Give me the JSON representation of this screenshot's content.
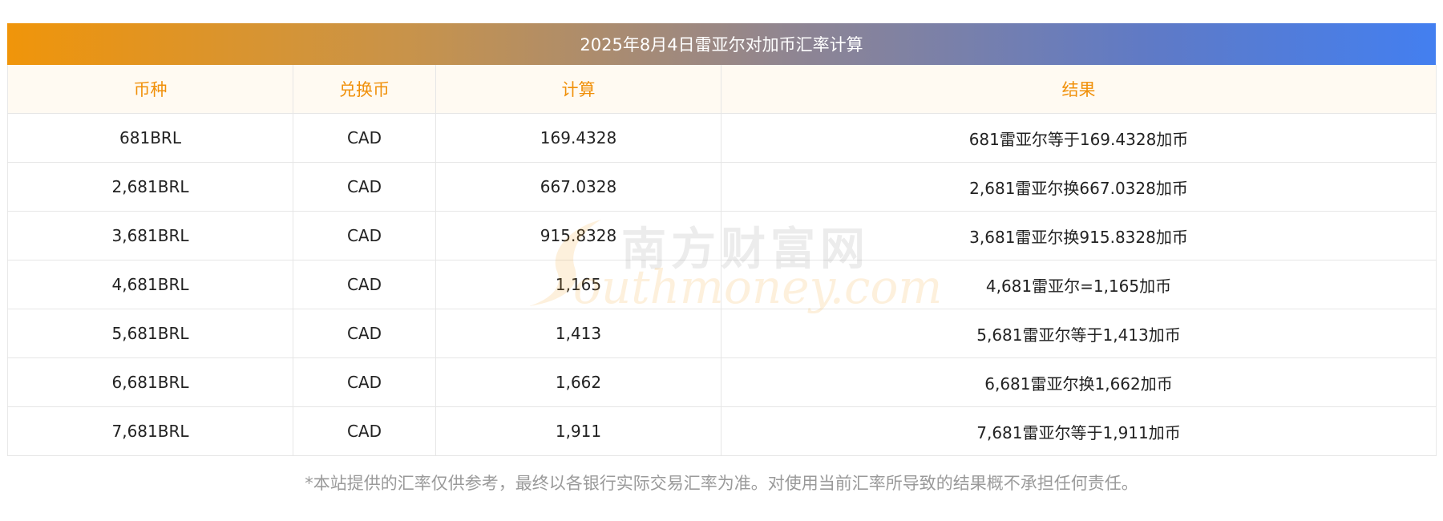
{
  "title": "2025年8月4日雷亚尔对加币汇率计算",
  "headers": [
    "币种",
    "兑换币",
    "计算",
    "结果"
  ],
  "rows": [
    {
      "currency": "681BRL",
      "target": "CAD",
      "calc": "169.4328",
      "result": "681雷亚尔等于169.4328加币"
    },
    {
      "currency": "2,681BRL",
      "target": "CAD",
      "calc": "667.0328",
      "result": "2,681雷亚尔换667.0328加币"
    },
    {
      "currency": "3,681BRL",
      "target": "CAD",
      "calc": "915.8328",
      "result": "3,681雷亚尔换915.8328加币"
    },
    {
      "currency": "4,681BRL",
      "target": "CAD",
      "calc": "1,165",
      "result": "4,681雷亚尔=1,165加币"
    },
    {
      "currency": "5,681BRL",
      "target": "CAD",
      "calc": "1,413",
      "result": "5,681雷亚尔等于1,413加币"
    },
    {
      "currency": "6,681BRL",
      "target": "CAD",
      "calc": "1,662",
      "result": "6,681雷亚尔换1,662加币"
    },
    {
      "currency": "7,681BRL",
      "target": "CAD",
      "calc": "1,911",
      "result": "7,681雷亚尔等于1,911加币"
    }
  ],
  "disclaimer": "*本站提供的汇率仅供参考，最终以各银行实际交易汇率为准。对使用当前汇率所导致的结果概不承担任何责任。",
  "watermark": {
    "cn": "南方财富网",
    "en": "outhmoney.com"
  },
  "colors": {
    "header_text": "#f0900a",
    "gradient_start": "#f0950a",
    "gradient_end": "#437ff0"
  }
}
